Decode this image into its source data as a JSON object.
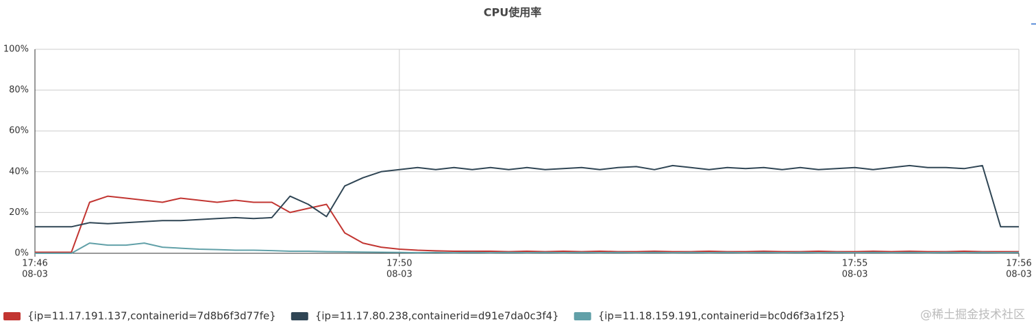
{
  "chart_data": {
    "type": "line",
    "title": "CPU使用率",
    "x": [
      "17:46:00",
      "17:46:12",
      "17:46:24",
      "17:46:36",
      "17:46:48",
      "17:47:00",
      "17:47:12",
      "17:47:24",
      "17:47:36",
      "17:47:48",
      "17:48:00",
      "17:48:12",
      "17:48:24",
      "17:48:36",
      "17:48:48",
      "17:49:00",
      "17:49:12",
      "17:49:24",
      "17:49:36",
      "17:49:48",
      "17:50:00",
      "17:50:12",
      "17:50:24",
      "17:50:36",
      "17:50:48",
      "17:51:00",
      "17:51:12",
      "17:51:24",
      "17:51:36",
      "17:51:48",
      "17:52:00",
      "17:52:12",
      "17:52:24",
      "17:52:36",
      "17:52:48",
      "17:53:00",
      "17:53:12",
      "17:53:24",
      "17:53:36",
      "17:53:48",
      "17:54:00",
      "17:54:12",
      "17:54:24",
      "17:54:36",
      "17:54:48",
      "17:55:00",
      "17:55:12",
      "17:55:24",
      "17:55:36",
      "17:55:48",
      "17:56:00",
      "17:56:12",
      "17:56:24",
      "17:56:36",
      "17:56:48"
    ],
    "series": [
      {
        "name": "{ip=11.17.191.137,containerid=7d8b6f3d77fe}",
        "color": "#c23531",
        "values": [
          0.5,
          0.5,
          0.5,
          25,
          28,
          27,
          26,
          25,
          27,
          26,
          25,
          26,
          25,
          25,
          20,
          22,
          24,
          10,
          5,
          3,
          2,
          1.5,
          1.2,
          1,
          1,
          1,
          0.8,
          1,
          0.8,
          1,
          0.8,
          1,
          0.8,
          0.8,
          1,
          0.8,
          0.8,
          1,
          0.8,
          0.8,
          1,
          0.8,
          0.8,
          1,
          0.8,
          0.8,
          1,
          0.8,
          1,
          0.8,
          0.8,
          1,
          0.8,
          0.8,
          0.8
        ]
      },
      {
        "name": "{ip=11.17.80.238,containerid=d91e7da0c3f4}",
        "color": "#2f4554",
        "values": [
          13,
          13,
          13,
          15,
          14.5,
          15,
          15.5,
          16,
          16,
          16.5,
          17,
          17.5,
          17,
          17.5,
          28,
          24,
          18,
          33,
          37,
          40,
          41,
          42,
          41,
          42,
          41,
          42,
          41,
          42,
          41,
          41.5,
          42,
          41,
          42,
          42.5,
          41,
          43,
          42,
          41,
          42,
          41.5,
          42,
          41,
          42,
          41,
          41.5,
          42,
          41,
          42,
          43,
          42,
          42,
          41.5,
          43,
          13,
          13
        ]
      },
      {
        "name": "{ip=11.18.159.191,containerid=bc0d6f3a1f25}",
        "color": "#61a0a8",
        "values": [
          0,
          0,
          0,
          5,
          4,
          4,
          5,
          3,
          2.5,
          2,
          1.8,
          1.5,
          1.5,
          1.3,
          1,
          1,
          0.8,
          0.7,
          0.6,
          0.5,
          0.4,
          0.3,
          0.4,
          0.3,
          0.4,
          0.3,
          0.4,
          0.3,
          0.4,
          0.3,
          0.4,
          0.3,
          0.4,
          0.3,
          0.4,
          0.3,
          0.4,
          0.3,
          0.4,
          0.3,
          0.4,
          0.3,
          0.4,
          0.3,
          0.4,
          0.3,
          0.4,
          0.3,
          0.4,
          0.3,
          0.4,
          0.3,
          0.4,
          0.3,
          0.4
        ]
      }
    ],
    "xlim": [
      "17:46:00",
      "17:56:48"
    ],
    "xticks": [
      {
        "value": "17:46:00",
        "label": "17:46",
        "date": "08-03"
      },
      {
        "value": "17:50:00",
        "label": "17:50",
        "date": "08-03"
      },
      {
        "value": "17:55:00",
        "label": "17:55",
        "date": "08-03"
      },
      {
        "value": "17:56:48",
        "label": "17:56",
        "date": "08-03"
      }
    ],
    "ylim": [
      0,
      100
    ],
    "yticks": [
      {
        "value": 0,
        "label": "0%"
      },
      {
        "value": 20,
        "label": "20%"
      },
      {
        "value": 40,
        "label": "40%"
      },
      {
        "value": 60,
        "label": "60%"
      },
      {
        "value": 80,
        "label": "80%"
      },
      {
        "value": 100,
        "label": "100%"
      }
    ],
    "grid": true,
    "legend": "bottom",
    "watermark": "@稀土掘金技术社区"
  }
}
